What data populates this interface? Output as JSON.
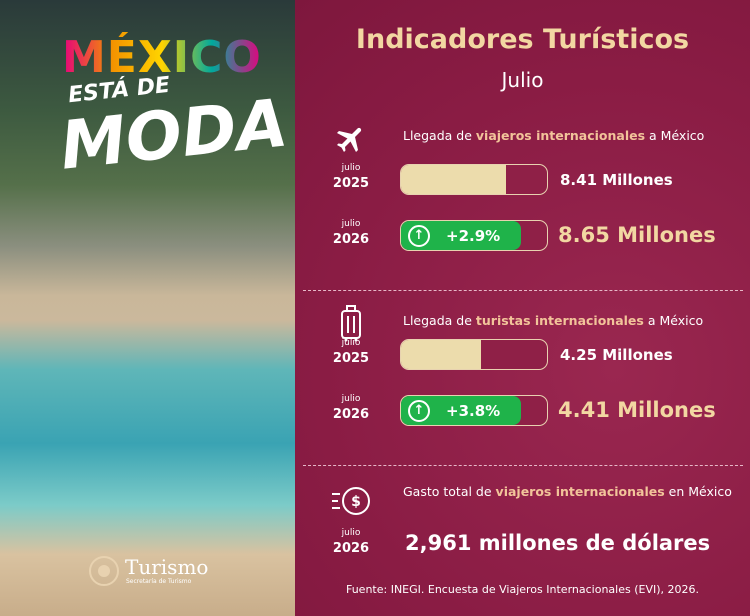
{
  "brand": {
    "title": "MÉXICO",
    "tagline": "ESTÁ DE",
    "highlight": "MODA",
    "ministry": "Turismo",
    "ministry_sub": "Secretaría de Turismo"
  },
  "header": {
    "title": "Indicadores Turísticos",
    "subtitle": "Julio"
  },
  "sections": [
    {
      "label": {
        "prefix": "Llegada de",
        "highlight": "viajeros internacionales",
        "suffix": "a México"
      },
      "rows": [
        {
          "month": "julio",
          "year": "2025",
          "value": "8.41 Millones"
        },
        {
          "month": "julio",
          "year": "2026",
          "change": "+2.9%",
          "value": "8.65 Millones"
        }
      ]
    },
    {
      "label": {
        "prefix": "Llegada de",
        "highlight": "turistas internacionales",
        "suffix": "a México"
      },
      "rows": [
        {
          "month": "julio",
          "year": "2025",
          "value": "4.25 Millones"
        },
        {
          "month": "julio",
          "year": "2026",
          "change": "+3.8%",
          "value": "4.41 Millones"
        }
      ]
    },
    {
      "label": {
        "prefix": "Gasto total de",
        "highlight": "viajeros internacionales",
        "suffix": "en México"
      },
      "rows": [
        {
          "month": "julio",
          "year": "2026",
          "value": "2,961 millones de dólares"
        }
      ]
    }
  ],
  "source": "Fuente: INEGI. Encuesta de Viajeros Internacionales (EVI), 2026."
}
